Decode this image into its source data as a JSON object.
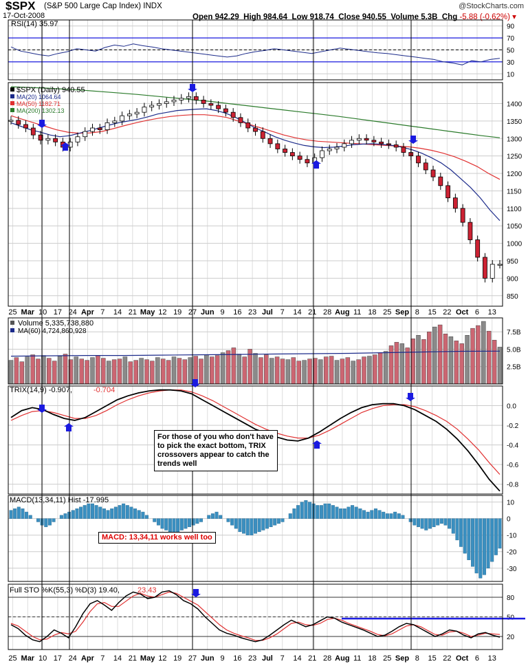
{
  "header": {
    "symbol": "$SPX",
    "name": "(S&P 500 Large Cap Index)  INDX",
    "date": "17-Oct-2008",
    "brand": "@StockCharts.com",
    "open": "Open 942.29",
    "high": "High 984.64",
    "low": "Low 918.74",
    "close": "Close 940.55",
    "volume": "Volume 5.3B",
    "chg_label": "Chg",
    "chg_value": "-5.88 (-0.62%)"
  },
  "annotations": {
    "trix_note": "For those of you who don't have to pick the exact bottom, TRIX crossovers appear to catch the trends well",
    "macd_note": "MACD: 13,34,11 works well too"
  },
  "colors": {
    "up": "#8a8a8a",
    "down": "#cc2233",
    "ma20": "#1b2a8a",
    "ma50": "#e03030",
    "ma200": "#2a7a2a",
    "signal": "#1a1ae0",
    "macd": "#3a8fc0"
  },
  "chart_data": [
    {
      "panel": "rsi",
      "type": "line",
      "legend": "RSI(14) 35.97",
      "yticks": [
        "90",
        "70",
        "50",
        "30",
        "10"
      ],
      "ylim": [
        0,
        100
      ],
      "levels": [
        70,
        30
      ],
      "values": [
        55,
        48,
        45,
        42,
        40,
        44,
        47,
        52,
        50,
        48,
        54,
        58,
        56,
        60,
        57,
        55,
        52,
        50,
        48,
        46,
        44,
        42,
        40,
        38,
        40,
        44,
        47,
        49,
        52,
        50,
        48,
        46,
        44,
        47,
        50,
        53,
        51,
        49,
        47,
        45,
        44,
        42,
        40,
        38,
        36,
        34,
        30,
        28,
        25,
        32,
        30,
        34,
        36
      ]
    },
    {
      "panel": "price",
      "type": "candlestick",
      "legend": [
        "$SPX (Daily) 940.55",
        "MA(20) 1064.64",
        "MA(50) 1182.71",
        "MA(200) 1302.13"
      ],
      "yticks": [
        "1400",
        "1350",
        "1300",
        "1250",
        "1200",
        "1150",
        "1100",
        "1050",
        "1000",
        "950",
        "900",
        "850"
      ],
      "ylim": [
        820,
        1460
      ],
      "xticks": [
        "25",
        "Mar",
        "10",
        "17",
        "24",
        "Apr",
        "7",
        "14",
        "21",
        "May",
        "12",
        "19",
        "27",
        "Jun",
        "9",
        "16",
        "23",
        "Jul",
        "7",
        "14",
        "21",
        "28",
        "Aug",
        "11",
        "18",
        "25",
        "Sep",
        "8",
        "15",
        "22",
        "Oct",
        "6",
        "13"
      ],
      "close": [
        1352,
        1340,
        1330,
        1310,
        1295,
        1300,
        1290,
        1275,
        1290,
        1305,
        1320,
        1330,
        1325,
        1345,
        1350,
        1365,
        1370,
        1375,
        1390,
        1395,
        1400,
        1405,
        1410,
        1415,
        1420,
        1410,
        1400,
        1395,
        1385,
        1375,
        1360,
        1345,
        1330,
        1320,
        1300,
        1285,
        1270,
        1260,
        1250,
        1240,
        1230,
        1245,
        1265,
        1270,
        1275,
        1285,
        1295,
        1300,
        1295,
        1290,
        1285,
        1282,
        1275,
        1260,
        1250,
        1230,
        1210,
        1190,
        1165,
        1130,
        1100,
        1060,
        1010,
        960,
        900,
        940,
        940
      ],
      "ma20": [
        1345,
        1335,
        1325,
        1318,
        1310,
        1305,
        1308,
        1315,
        1322,
        1330,
        1338,
        1345,
        1350,
        1355,
        1362,
        1370,
        1375,
        1380,
        1382,
        1384,
        1385,
        1380,
        1372,
        1360,
        1345,
        1330,
        1318,
        1305,
        1295,
        1287,
        1280,
        1276,
        1274,
        1275,
        1278,
        1282,
        1284,
        1285,
        1283,
        1280,
        1275,
        1268,
        1258,
        1245,
        1230,
        1210,
        1185,
        1160,
        1130,
        1095,
        1065
      ],
      "ma50": [
        1365,
        1355,
        1345,
        1335,
        1325,
        1318,
        1315,
        1316,
        1320,
        1328,
        1337,
        1345,
        1352,
        1358,
        1363,
        1366,
        1368,
        1368,
        1365,
        1360,
        1350,
        1340,
        1330,
        1320,
        1310,
        1302,
        1296,
        1292,
        1290,
        1288,
        1286,
        1284,
        1282,
        1280,
        1278,
        1276,
        1272,
        1266,
        1258,
        1248,
        1235,
        1220,
        1200,
        1183
      ],
      "ma200": [
        1448,
        1446,
        1444,
        1441,
        1438,
        1434,
        1430,
        1426,
        1421,
        1416,
        1411,
        1406,
        1400,
        1394,
        1388,
        1382,
        1376,
        1370,
        1364,
        1357,
        1350,
        1343,
        1336,
        1329,
        1322,
        1315,
        1308,
        1302
      ]
    },
    {
      "panel": "volume",
      "type": "bar",
      "legend": [
        "Volume 5,335,738,880",
        "MA(60) 4,724,860,928"
      ],
      "yticks": [
        "7.5B",
        "5.0B",
        "2.5B"
      ],
      "ylim": [
        0,
        9.5
      ],
      "values": [
        3.4,
        3.8,
        3.2,
        3.9,
        4.2,
        3.6,
        4.1,
        3.7,
        3.3,
        4.0,
        4.3,
        3.5,
        3.9,
        3.6,
        3.4,
        3.8,
        4.1,
        3.7,
        3.3,
        3.5,
        3.6,
        3.9,
        3.2,
        3.4,
        3.7,
        3.5,
        3.3,
        3.8,
        3.6,
        3.4,
        3.9,
        3.7,
        3.5,
        3.8,
        4.0,
        3.6,
        4.2,
        3.9,
        4.1,
        4.5,
        4.8,
        5.2,
        4.3,
        3.9,
        5.0,
        4.4,
        3.8,
        4.2,
        3.7,
        3.9,
        3.6,
        3.5,
        3.8,
        3.3,
        3.4,
        3.6,
        3.7,
        3.5,
        3.9,
        4.0,
        3.4,
        3.6,
        3.8,
        3.3,
        3.5,
        3.9,
        4.0,
        4.2,
        4.5,
        4.7,
        5.5,
        6.0,
        5.8,
        5.2,
        6.5,
        7.0,
        6.4,
        7.5,
        8.2,
        8.5,
        7.2,
        6.8,
        6.2,
        5.8,
        7.0,
        8.0,
        8.4,
        9.0,
        7.6,
        6.3,
        5.3
      ],
      "ma": [
        4.0,
        4.05,
        4.1,
        4.1,
        4.15,
        4.2,
        4.25,
        4.3,
        4.35,
        4.4,
        4.5,
        4.6,
        4.7,
        4.72
      ]
    },
    {
      "panel": "trix",
      "type": "line",
      "legend": [
        "TRIX(14,9) -0.907,",
        "-0.704"
      ],
      "yticks": [
        "0.0",
        "-0.2",
        "-0.4",
        "-0.6",
        "-0.8"
      ],
      "ylim": [
        -0.9,
        0.2
      ],
      "series": [
        {
          "values": [
            -0.12,
            -0.05,
            -0.02,
            -0.04,
            -0.09,
            -0.13,
            -0.15,
            -0.12,
            -0.06,
            0.0,
            0.06,
            0.1,
            0.13,
            0.15,
            0.16,
            0.16,
            0.15,
            0.12,
            0.06,
            0.0,
            -0.06,
            -0.12,
            -0.18,
            -0.24,
            -0.28,
            -0.32,
            -0.35,
            -0.36,
            -0.33,
            -0.27,
            -0.2,
            -0.13,
            -0.07,
            -0.02,
            0.01,
            0.02,
            0.02,
            0.0,
            -0.04,
            -0.1,
            -0.16,
            -0.24,
            -0.34,
            -0.46,
            -0.6,
            -0.75,
            -0.87
          ]
        },
        {
          "values": [
            -0.15,
            -0.1,
            -0.06,
            -0.05,
            -0.07,
            -0.1,
            -0.13,
            -0.13,
            -0.1,
            -0.05,
            0.01,
            0.06,
            0.1,
            0.13,
            0.15,
            0.16,
            0.16,
            0.14,
            0.1,
            0.05,
            -0.01,
            -0.07,
            -0.13,
            -0.19,
            -0.24,
            -0.28,
            -0.31,
            -0.33,
            -0.33,
            -0.3,
            -0.25,
            -0.19,
            -0.13,
            -0.07,
            -0.03,
            0.0,
            0.01,
            0.01,
            -0.01,
            -0.05,
            -0.1,
            -0.16,
            -0.24,
            -0.34,
            -0.45,
            -0.58,
            -0.7
          ]
        }
      ]
    },
    {
      "panel": "macd",
      "type": "bar",
      "legend": "MACD(13,34,11) Hist -17.995",
      "yticks": [
        "10",
        "0",
        "-10",
        "-20",
        "-30"
      ],
      "ylim": [
        -38,
        14
      ],
      "values": [
        5,
        6,
        7,
        6,
        4,
        2,
        0,
        -2,
        -4,
        -5,
        -4,
        -2,
        0,
        2,
        3,
        4,
        5,
        6,
        7,
        8,
        9,
        9,
        8,
        7,
        6,
        5,
        6,
        7,
        8,
        9,
        8,
        7,
        6,
        5,
        4,
        2,
        0,
        -2,
        -4,
        -6,
        -7,
        -8,
        -9,
        -8,
        -7,
        -6,
        -5,
        -4,
        -3,
        -2,
        0,
        2,
        3,
        4,
        2,
        0,
        -2,
        -4,
        -6,
        -8,
        -9,
        -10,
        -10,
        -9,
        -8,
        -7,
        -6,
        -5,
        -4,
        -3,
        -2,
        0,
        3,
        6,
        8,
        10,
        11,
        10,
        9,
        8,
        8,
        9,
        9,
        8,
        7,
        6,
        6,
        7,
        8,
        7,
        6,
        5,
        4,
        5,
        6,
        5,
        4,
        3,
        3,
        4,
        3,
        2,
        0,
        -2,
        -4,
        -5,
        -6,
        -7,
        -6,
        -5,
        -4,
        -3,
        -4,
        -6,
        -9,
        -13,
        -17,
        -21,
        -25,
        -29,
        -33,
        -36,
        -34,
        -30,
        -26,
        -22,
        -18
      ]
    },
    {
      "panel": "stochastic",
      "type": "line",
      "legend": [
        "Full STO %K(55,3) %D(3) 19.40,",
        "23.43"
      ],
      "yticks": [
        "80",
        "50",
        "20"
      ],
      "ylim": [
        0,
        100
      ],
      "levels": [
        80,
        50,
        20
      ],
      "series": [
        {
          "values": [
            38,
            32,
            22,
            15,
            12,
            20,
            30,
            25,
            18,
            35,
            55,
            70,
            75,
            68,
            60,
            72,
            82,
            88,
            85,
            78,
            80,
            88,
            90,
            84,
            75,
            70,
            62,
            50,
            40,
            30,
            25,
            22,
            18,
            15,
            12,
            15,
            22,
            30,
            38,
            45,
            40,
            35,
            38,
            44,
            50,
            48,
            42,
            38,
            34,
            30,
            25,
            20,
            22,
            28,
            35,
            40,
            38,
            32,
            26,
            20,
            24,
            30,
            28,
            22,
            18,
            24,
            26,
            22,
            19
          ]
        },
        {
          "values": [
            40,
            36,
            28,
            20,
            15,
            16,
            22,
            26,
            24,
            28,
            42,
            58,
            70,
            72,
            66,
            66,
            74,
            82,
            86,
            82,
            80,
            84,
            88,
            86,
            80,
            74,
            68,
            58,
            48,
            38,
            30,
            25,
            21,
            18,
            14,
            14,
            18,
            24,
            32,
            40,
            42,
            38,
            37,
            40,
            46,
            48,
            45,
            40,
            36,
            32,
            28,
            23,
            21,
            24,
            30,
            36,
            38,
            35,
            29,
            23,
            22,
            27,
            28,
            25,
            20,
            22,
            25,
            24,
            23
          ]
        }
      ]
    }
  ]
}
